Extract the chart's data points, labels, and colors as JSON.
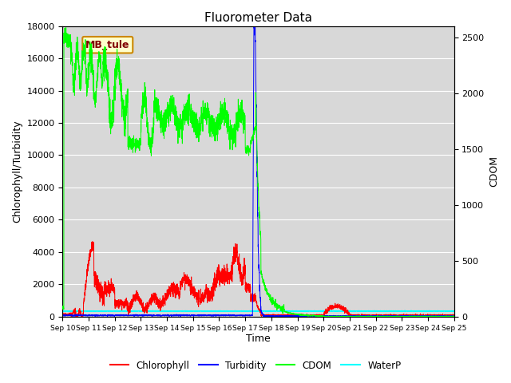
{
  "title": "Fluorometer Data",
  "xlabel": "Time",
  "ylabel_left": "Chlorophyll/Turbidity",
  "ylabel_right": "CDOM",
  "annotation": "MB_tule",
  "legend_labels": [
    "Chlorophyll",
    "Turbidity",
    "CDOM",
    "WaterP"
  ],
  "legend_colors": [
    "red",
    "blue",
    "lime",
    "cyan"
  ],
  "ylim_left": [
    0,
    18000
  ],
  "ylim_right": [
    0,
    2600
  ],
  "xtick_labels": [
    "Sep 10",
    "Sep 11",
    "Sep 12",
    "Sep 13",
    "Sep 14",
    "Sep 15",
    "Sep 16",
    "Sep 17",
    "Sep 18",
    "Sep 19",
    "Sep 20",
    "Sep 21",
    "Sep 22",
    "Sep 23",
    "Sep 24",
    "Sep 25"
  ],
  "bg_color": "#d8d8d8",
  "title_fontsize": 11,
  "axis_label_fontsize": 9,
  "tick_fontsize": 8,
  "annotation_facecolor": "#ffffcc",
  "annotation_edgecolor": "#cc8800",
  "annotation_textcolor": "#800000"
}
